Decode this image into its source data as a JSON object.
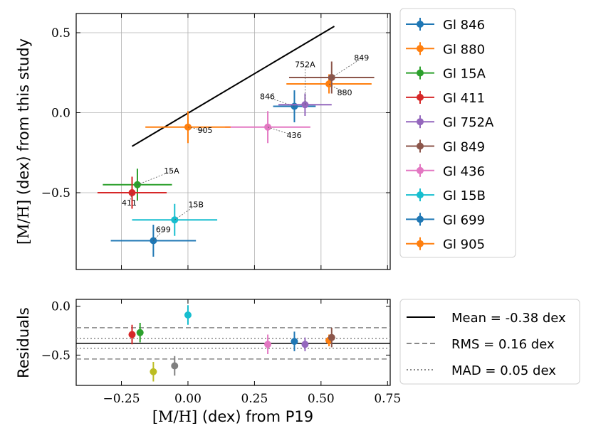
{
  "chart_data": [
    {
      "type": "scatter",
      "panel": "main",
      "xlabel_math": "[M/H]",
      "xlabel_text": " (dex) from P19",
      "ylabel_math": "[M/H]",
      "ylabel_text": " (dex) from this study",
      "xlim": [
        -0.42,
        0.76
      ],
      "ylim": [
        -0.98,
        0.62
      ],
      "xticks": [
        -0.25,
        0.0,
        0.25,
        0.5,
        0.75
      ],
      "xtick_labels": [
        "−0.25",
        "0.00",
        "0.25",
        "0.50",
        "0.75"
      ],
      "yticks": [
        -0.5,
        0.0,
        0.5
      ],
      "ytick_labels": [
        "−0.5",
        "0.0",
        "0.5"
      ],
      "grid": true,
      "legend_position": "outside-right",
      "reference_line": {
        "x": [
          -0.21,
          0.55
        ],
        "y": [
          -0.21,
          0.54
        ],
        "color": "#000000"
      },
      "series": [
        {
          "name": "Gl 846",
          "label": "846",
          "color": "#1f77b4",
          "x": 0.4,
          "xerr": 0.08,
          "y": 0.04,
          "yerr": 0.1
        },
        {
          "name": "Gl 880",
          "label": "880",
          "color": "#ff7f0e",
          "x": 0.53,
          "xerr": 0.16,
          "y": 0.18,
          "yerr": 0.06
        },
        {
          "name": "Gl 15A",
          "label": "15A",
          "color": "#2ca02c",
          "x": -0.19,
          "xerr": 0.13,
          "y": -0.45,
          "yerr": 0.1
        },
        {
          "name": "Gl 411",
          "label": "411",
          "color": "#d62728",
          "x": -0.21,
          "xerr": 0.13,
          "y": -0.5,
          "yerr": 0.1
        },
        {
          "name": "Gl 752A",
          "label": "752A",
          "color": "#9467bd",
          "x": 0.44,
          "xerr": 0.1,
          "y": 0.05,
          "yerr": 0.07
        },
        {
          "name": "Gl 849",
          "label": "849",
          "color": "#8c564b",
          "x": 0.54,
          "xerr": 0.16,
          "y": 0.22,
          "yerr": 0.1
        },
        {
          "name": "Gl 436",
          "label": "436",
          "color": "#e377c2",
          "x": 0.3,
          "xerr": 0.16,
          "y": -0.09,
          "yerr": 0.1
        },
        {
          "name": "Gl 15B",
          "label": "15B",
          "color": "#17becf",
          "x": -0.05,
          "xerr": 0.16,
          "y": -0.67,
          "yerr": 0.1
        },
        {
          "name": "Gl 699",
          "label": "699",
          "color": "#1f77b4",
          "x": -0.13,
          "xerr": 0.16,
          "y": -0.8,
          "yerr": 0.1
        },
        {
          "name": "Gl 905",
          "label": "905",
          "color": "#ff7f0e",
          "x": 0.0,
          "xerr": 0.16,
          "y": -0.09,
          "yerr": 0.1
        }
      ]
    },
    {
      "type": "scatter",
      "panel": "residuals",
      "ylabel": "Residuals",
      "xlim": [
        -0.42,
        0.76
      ],
      "ylim": [
        -0.81,
        0.07
      ],
      "yticks": [
        -0.5,
        0.0
      ],
      "ytick_labels": [
        "−0.5",
        "0.0"
      ],
      "points": [
        {
          "x": 0.4,
          "y": -0.36,
          "yerr": 0.1,
          "color": "#1f77b4"
        },
        {
          "x": 0.53,
          "y": -0.35,
          "yerr": 0.06,
          "color": "#ff7f0e"
        },
        {
          "x": -0.18,
          "y": -0.27,
          "yerr": 0.1,
          "color": "#2ca02c"
        },
        {
          "x": -0.21,
          "y": -0.29,
          "yerr": 0.1,
          "color": "#d62728"
        },
        {
          "x": 0.44,
          "y": -0.39,
          "yerr": 0.07,
          "color": "#9467bd"
        },
        {
          "x": 0.54,
          "y": -0.32,
          "yerr": 0.1,
          "color": "#8c564b"
        },
        {
          "x": 0.3,
          "y": -0.39,
          "yerr": 0.1,
          "color": "#e377c2"
        },
        {
          "x": 0.0,
          "y": -0.09,
          "yerr": 0.1,
          "color": "#17becf"
        },
        {
          "x": -0.05,
          "y": -0.61,
          "yerr": 0.1,
          "color": "#7f7f7f"
        },
        {
          "x": -0.13,
          "y": -0.67,
          "yerr": 0.1,
          "color": "#bcbd22"
        }
      ],
      "mean": -0.38,
      "rms": 0.16,
      "mad": 0.05,
      "legend": [
        {
          "label": "Mean = -0.38 dex",
          "style": "solid"
        },
        {
          "label": "RMS = 0.16 dex",
          "style": "dashed"
        },
        {
          "label": "MAD = 0.05 dex",
          "style": "dotted"
        }
      ]
    }
  ]
}
